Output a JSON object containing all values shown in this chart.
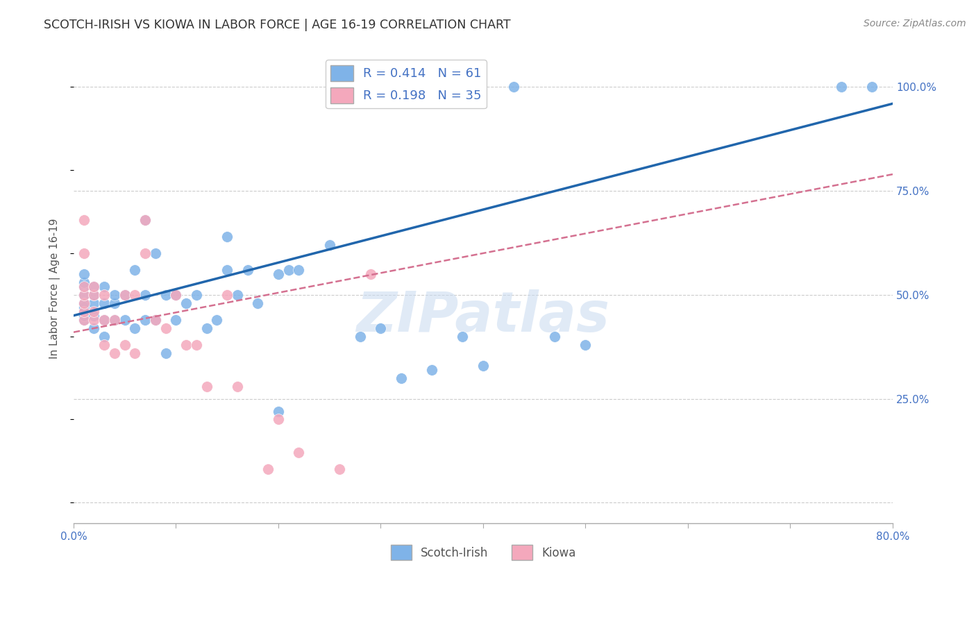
{
  "title": "SCOTCH-IRISH VS KIOWA IN LABOR FORCE | AGE 16-19 CORRELATION CHART",
  "source": "Source: ZipAtlas.com",
  "ylabel": "In Labor Force | Age 16-19",
  "xlim": [
    0.0,
    0.8
  ],
  "ylim": [
    -0.05,
    1.08
  ],
  "xticks": [
    0.0,
    0.1,
    0.2,
    0.3,
    0.4,
    0.5,
    0.6,
    0.7,
    0.8
  ],
  "xticklabels": [
    "0.0%",
    "",
    "",
    "",
    "",
    "",
    "",
    "",
    "80.0%"
  ],
  "yticks": [
    0.0,
    0.25,
    0.5,
    0.75,
    1.0
  ],
  "yticklabels": [
    "",
    "25.0%",
    "50.0%",
    "75.0%",
    "100.0%"
  ],
  "scotch_irish_R": 0.414,
  "scotch_irish_N": 61,
  "kiowa_R": 0.198,
  "kiowa_N": 35,
  "scotch_irish_color": "#7fb3e8",
  "kiowa_color": "#f4a8bc",
  "regression_blue": "#2166ac",
  "regression_pink": "#d47090",
  "watermark": "ZIPatlas",
  "si_line_x0": 0.0,
  "si_line_y0": 0.45,
  "si_line_x1": 0.8,
  "si_line_y1": 0.96,
  "ki_line_x0": 0.0,
  "ki_line_y0": 0.41,
  "ki_line_x1": 0.8,
  "ki_line_y1": 0.79,
  "scotch_irish_x": [
    0.01,
    0.01,
    0.01,
    0.01,
    0.01,
    0.01,
    0.01,
    0.01,
    0.01,
    0.02,
    0.02,
    0.02,
    0.02,
    0.02,
    0.03,
    0.03,
    0.03,
    0.03,
    0.04,
    0.04,
    0.04,
    0.05,
    0.05,
    0.06,
    0.06,
    0.07,
    0.07,
    0.07,
    0.08,
    0.08,
    0.09,
    0.09,
    0.1,
    0.1,
    0.11,
    0.12,
    0.13,
    0.14,
    0.15,
    0.15,
    0.16,
    0.17,
    0.18,
    0.2,
    0.2,
    0.21,
    0.22,
    0.25,
    0.28,
    0.3,
    0.32,
    0.35,
    0.36,
    0.37,
    0.38,
    0.4,
    0.43,
    0.47,
    0.5,
    0.75,
    0.78
  ],
  "scotch_irish_y": [
    0.44,
    0.45,
    0.46,
    0.47,
    0.48,
    0.5,
    0.52,
    0.53,
    0.55,
    0.42,
    0.45,
    0.48,
    0.5,
    0.52,
    0.4,
    0.44,
    0.48,
    0.52,
    0.44,
    0.48,
    0.5,
    0.44,
    0.5,
    0.42,
    0.56,
    0.44,
    0.5,
    0.68,
    0.44,
    0.6,
    0.36,
    0.5,
    0.44,
    0.5,
    0.48,
    0.5,
    0.42,
    0.44,
    0.56,
    0.64,
    0.5,
    0.56,
    0.48,
    0.22,
    0.55,
    0.56,
    0.56,
    0.62,
    0.4,
    0.42,
    0.3,
    0.32,
    1.0,
    1.0,
    0.4,
    0.33,
    1.0,
    0.4,
    0.38,
    1.0,
    1.0
  ],
  "kiowa_x": [
    0.01,
    0.01,
    0.01,
    0.01,
    0.01,
    0.01,
    0.01,
    0.02,
    0.02,
    0.02,
    0.02,
    0.03,
    0.03,
    0.03,
    0.04,
    0.04,
    0.05,
    0.05,
    0.06,
    0.06,
    0.07,
    0.07,
    0.08,
    0.09,
    0.1,
    0.11,
    0.12,
    0.13,
    0.15,
    0.16,
    0.19,
    0.2,
    0.22,
    0.26,
    0.29
  ],
  "kiowa_y": [
    0.44,
    0.46,
    0.48,
    0.5,
    0.52,
    0.6,
    0.68,
    0.44,
    0.46,
    0.5,
    0.52,
    0.38,
    0.44,
    0.5,
    0.36,
    0.44,
    0.38,
    0.5,
    0.36,
    0.5,
    0.6,
    0.68,
    0.44,
    0.42,
    0.5,
    0.38,
    0.38,
    0.28,
    0.5,
    0.28,
    0.08,
    0.2,
    0.12,
    0.08,
    0.55
  ]
}
